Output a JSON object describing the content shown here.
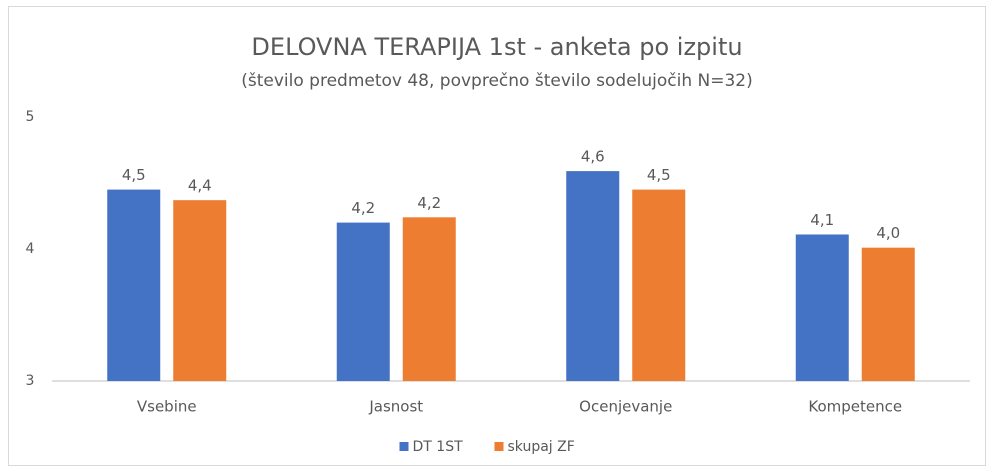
{
  "chart_data": {
    "type": "bar",
    "title": "DELOVNA TERAPIJA 1st - anketa po izpitu",
    "subtitle": "(število predmetov 48, povprečno število sodelujočih N=32)",
    "categories": [
      "Vsebine",
      "Jasnost",
      "Ocenjevanje",
      "Kompetence"
    ],
    "series": [
      {
        "name": "DT 1ST",
        "color": "#4472c4",
        "values": [
          4.45,
          4.2,
          4.59,
          4.11
        ],
        "value_labels": [
          "4,5",
          "4,2",
          "4,6",
          "4,1"
        ]
      },
      {
        "name": "skupaj ZF",
        "color": "#ed7d31",
        "values": [
          4.37,
          4.24,
          4.45,
          4.01
        ],
        "value_labels": [
          "4,4",
          "4,2",
          "4,5",
          "4,0"
        ]
      }
    ],
    "ylim": [
      3,
      5
    ],
    "yticks": [
      3,
      4,
      5
    ],
    "grid": false,
    "legend": "bottom"
  }
}
